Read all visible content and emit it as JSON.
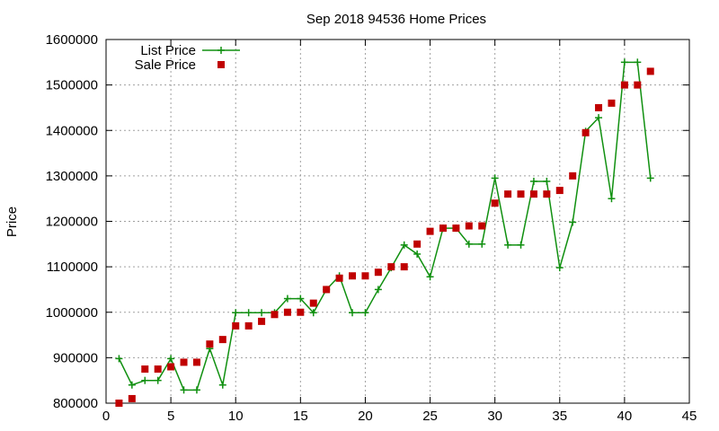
{
  "chart_data": {
    "type": "line",
    "title": "Sep 2018 94536 Home Prices",
    "xlabel": "",
    "ylabel": "Price",
    "xlim": [
      0,
      45
    ],
    "ylim": [
      800000,
      1600000
    ],
    "x_ticks": [
      0,
      5,
      10,
      15,
      20,
      25,
      30,
      35,
      40,
      45
    ],
    "y_ticks": [
      800000,
      900000,
      1000000,
      1100000,
      1200000,
      1300000,
      1400000,
      1500000,
      1600000
    ],
    "grid": true,
    "legend_position": "top-left",
    "series": [
      {
        "name": "List Price",
        "style": "line+cross",
        "color": "#109010",
        "points": [
          [
            1,
            898000
          ],
          [
            2,
            840000
          ],
          [
            3,
            850000
          ],
          [
            4,
            850000
          ],
          [
            5,
            898000
          ],
          [
            6,
            829000
          ],
          [
            7,
            829000
          ],
          [
            8,
            920000
          ],
          [
            9,
            840000
          ],
          [
            10,
            999000
          ],
          [
            11,
            999000
          ],
          [
            12,
            999000
          ],
          [
            13,
            999000
          ],
          [
            14,
            1030000
          ],
          [
            15,
            1030000
          ],
          [
            16,
            999000
          ],
          [
            17,
            1050000
          ],
          [
            18,
            1080000
          ],
          [
            19,
            999000
          ],
          [
            20,
            999000
          ],
          [
            21,
            1050000
          ],
          [
            22,
            1098000
          ],
          [
            23,
            1148000
          ],
          [
            24,
            1128000
          ],
          [
            25,
            1078000
          ],
          [
            26,
            1185000
          ],
          [
            27,
            1185000
          ],
          [
            28,
            1150000
          ],
          [
            29,
            1150000
          ],
          [
            30,
            1295000
          ],
          [
            31,
            1148000
          ],
          [
            32,
            1148000
          ],
          [
            33,
            1288000
          ],
          [
            34,
            1288000
          ],
          [
            35,
            1098000
          ],
          [
            36,
            1198000
          ],
          [
            37,
            1398000
          ],
          [
            38,
            1428000
          ],
          [
            39,
            1250000
          ],
          [
            40,
            1550000
          ],
          [
            41,
            1550000
          ],
          [
            42,
            1295000
          ]
        ]
      },
      {
        "name": "Sale Price",
        "style": "square",
        "color": "#c00000",
        "points": [
          [
            1,
            800000
          ],
          [
            2,
            810000
          ],
          [
            3,
            875000
          ],
          [
            4,
            875000
          ],
          [
            5,
            880000
          ],
          [
            6,
            890000
          ],
          [
            7,
            890000
          ],
          [
            8,
            930000
          ],
          [
            9,
            940000
          ],
          [
            10,
            970000
          ],
          [
            11,
            970000
          ],
          [
            12,
            980000
          ],
          [
            13,
            995000
          ],
          [
            14,
            1000000
          ],
          [
            15,
            1000000
          ],
          [
            16,
            1020000
          ],
          [
            17,
            1050000
          ],
          [
            18,
            1075000
          ],
          [
            19,
            1080000
          ],
          [
            20,
            1080000
          ],
          [
            21,
            1088000
          ],
          [
            22,
            1100000
          ],
          [
            23,
            1100000
          ],
          [
            24,
            1150000
          ],
          [
            25,
            1178000
          ],
          [
            26,
            1185000
          ],
          [
            27,
            1185000
          ],
          [
            28,
            1190000
          ],
          [
            29,
            1190000
          ],
          [
            30,
            1240000
          ],
          [
            31,
            1260000
          ],
          [
            32,
            1260000
          ],
          [
            33,
            1260000
          ],
          [
            34,
            1260000
          ],
          [
            35,
            1268000
          ],
          [
            36,
            1300000
          ],
          [
            37,
            1395000
          ],
          [
            38,
            1450000
          ],
          [
            39,
            1460000
          ],
          [
            40,
            1500000
          ],
          [
            41,
            1500000
          ],
          [
            42,
            1530000
          ]
        ]
      }
    ]
  }
}
